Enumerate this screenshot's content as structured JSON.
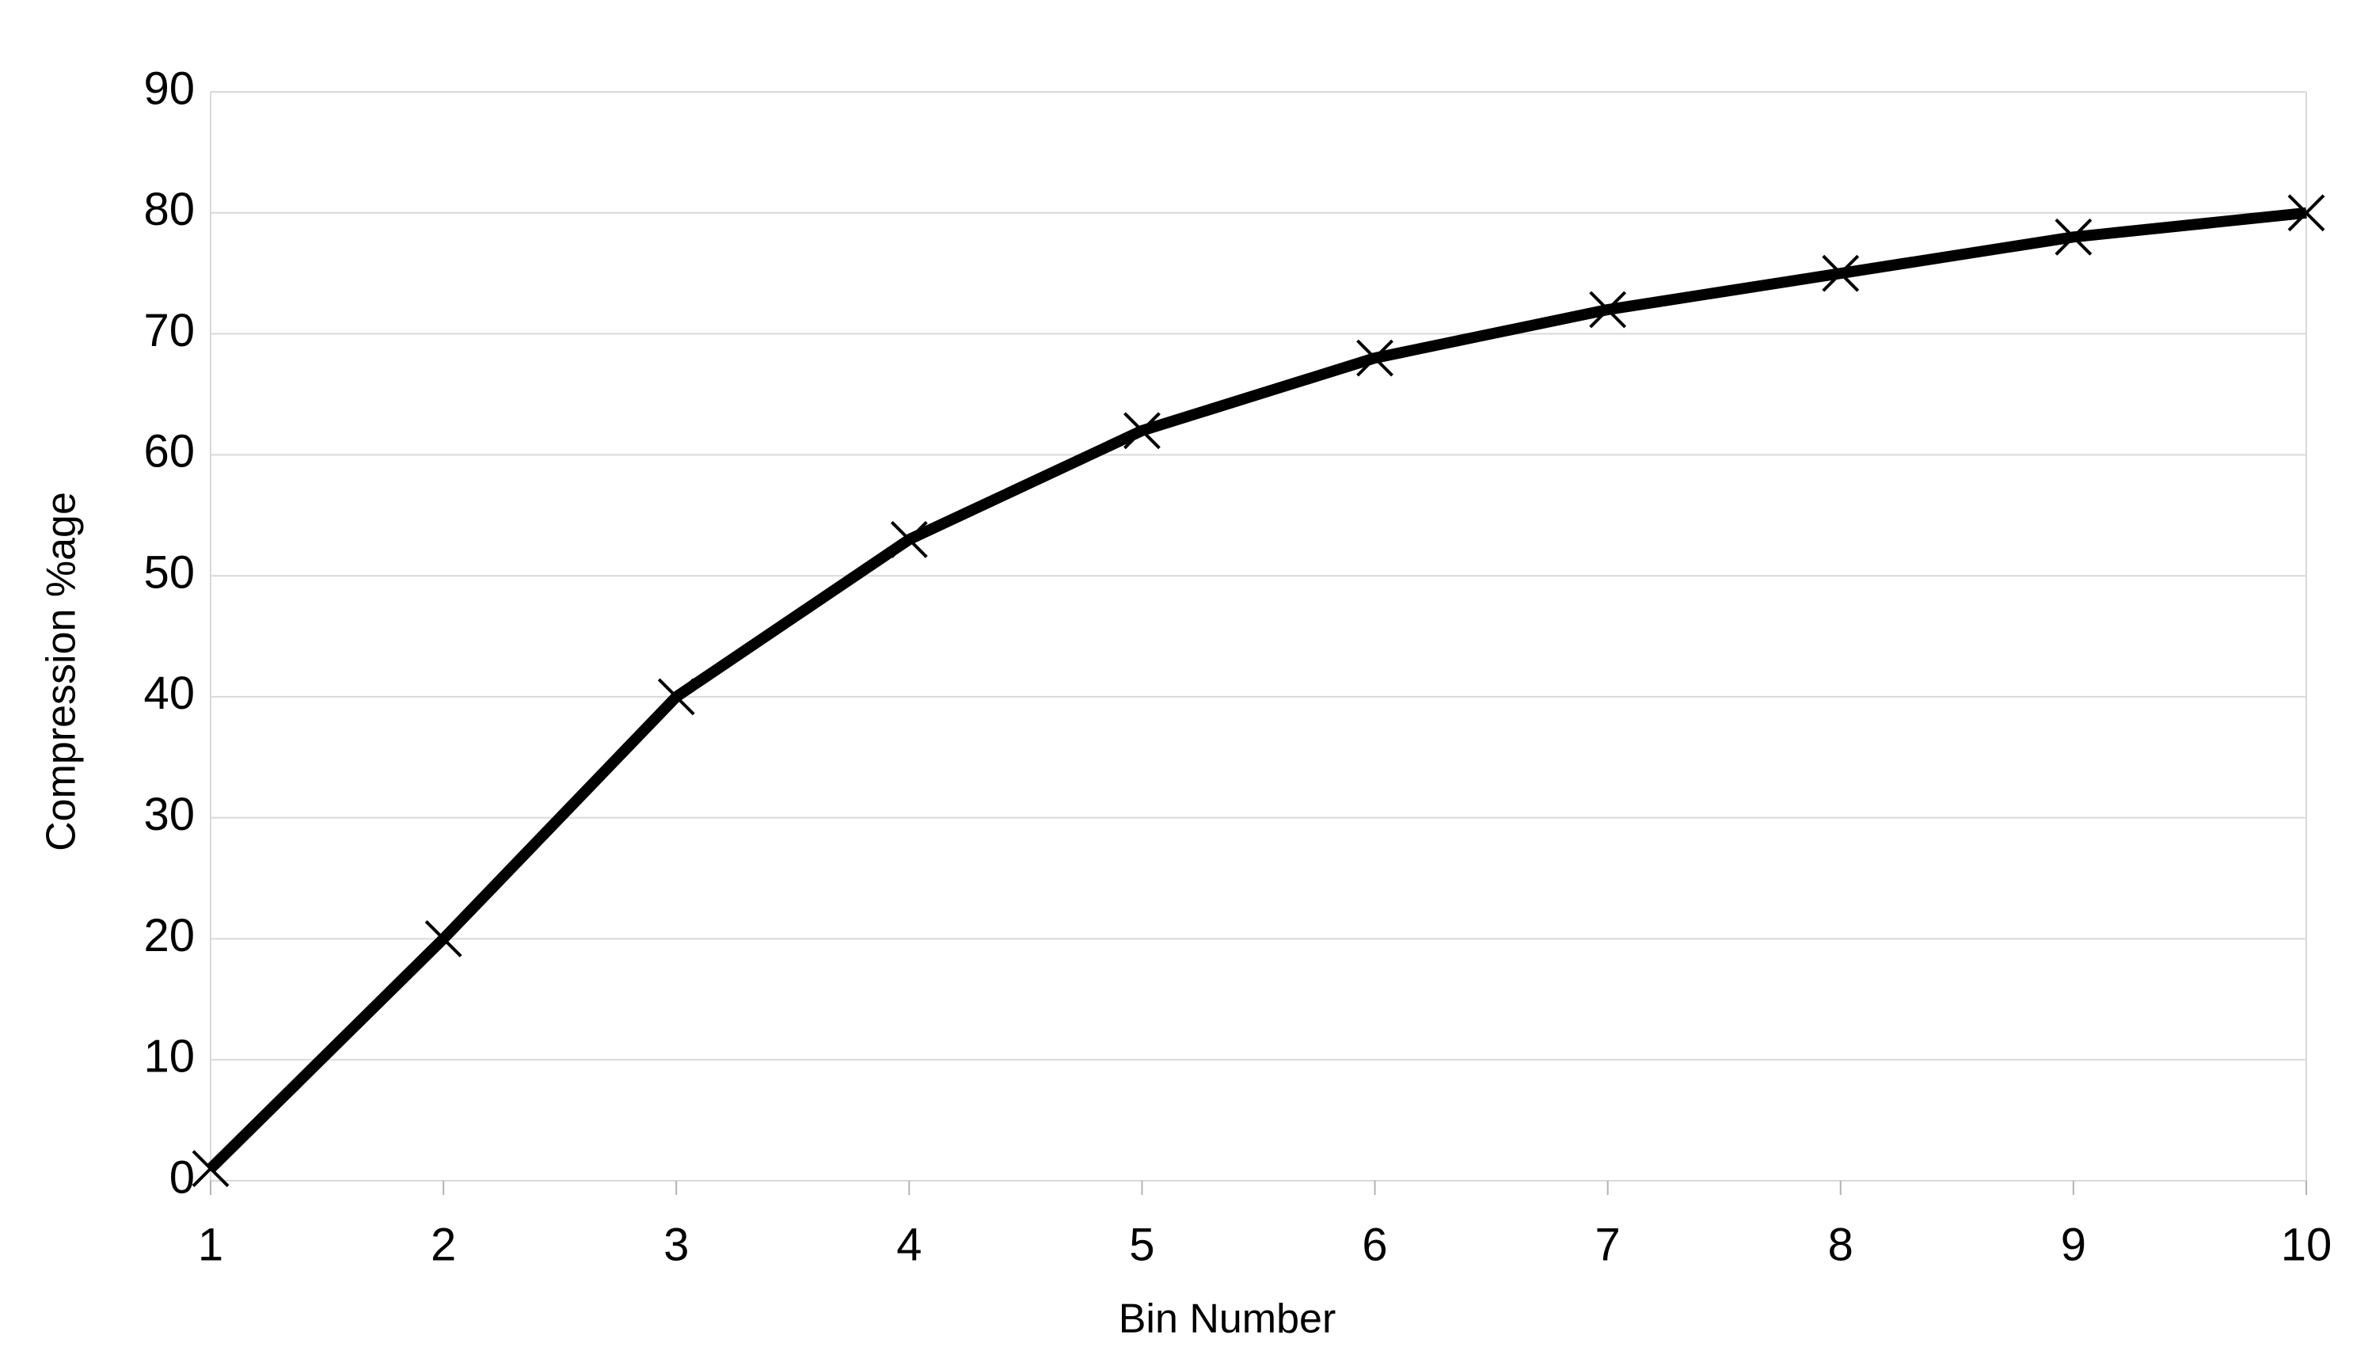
{
  "chart_data": {
    "type": "line",
    "x_label": "Bin Number",
    "y_label": "Compression %age",
    "x": [
      1,
      2,
      3,
      4,
      5,
      6,
      7,
      8,
      9,
      10
    ],
    "series": [
      {
        "color": "#000000",
        "values": [
          1,
          20,
          40,
          53,
          62,
          68,
          72,
          75,
          78,
          80
        ]
      }
    ],
    "xlim": [
      1,
      10
    ],
    "xticks": [
      1,
      2,
      3,
      4,
      5,
      6,
      7,
      8,
      9,
      10
    ],
    "ylim": [
      0,
      90
    ],
    "yticks": [
      0,
      10,
      20,
      30,
      40,
      50,
      60,
      70,
      80,
      90
    ],
    "grid": true,
    "marker": "x"
  }
}
